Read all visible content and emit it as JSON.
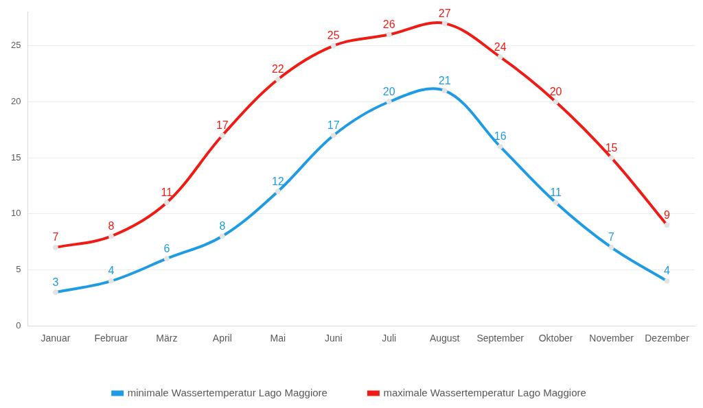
{
  "chart_data": {
    "type": "line",
    "categories": [
      "Januar",
      "Februar",
      "März",
      "April",
      "Mai",
      "Juni",
      "Juli",
      "August",
      "September",
      "Oktober",
      "November",
      "Dezember"
    ],
    "series": [
      {
        "name": "minimale Wassertemperatur Lago Maggiore",
        "color": "#1f9be3",
        "marker": "circle",
        "values": [
          3,
          4,
          6,
          8,
          12,
          17,
          20,
          21,
          16,
          11,
          7,
          4
        ]
      },
      {
        "name": "maximale Wassertemperatur Lago Maggiore",
        "color": "#ee1c14",
        "marker": "circle",
        "values": [
          7,
          8,
          11,
          17,
          22,
          25,
          26,
          27,
          24,
          20,
          15,
          9
        ]
      }
    ],
    "ylim": [
      0,
      28
    ],
    "yticks": [
      0,
      5,
      10,
      15,
      20,
      25
    ],
    "grid": true,
    "legend": "bottom",
    "data_labels": true
  }
}
